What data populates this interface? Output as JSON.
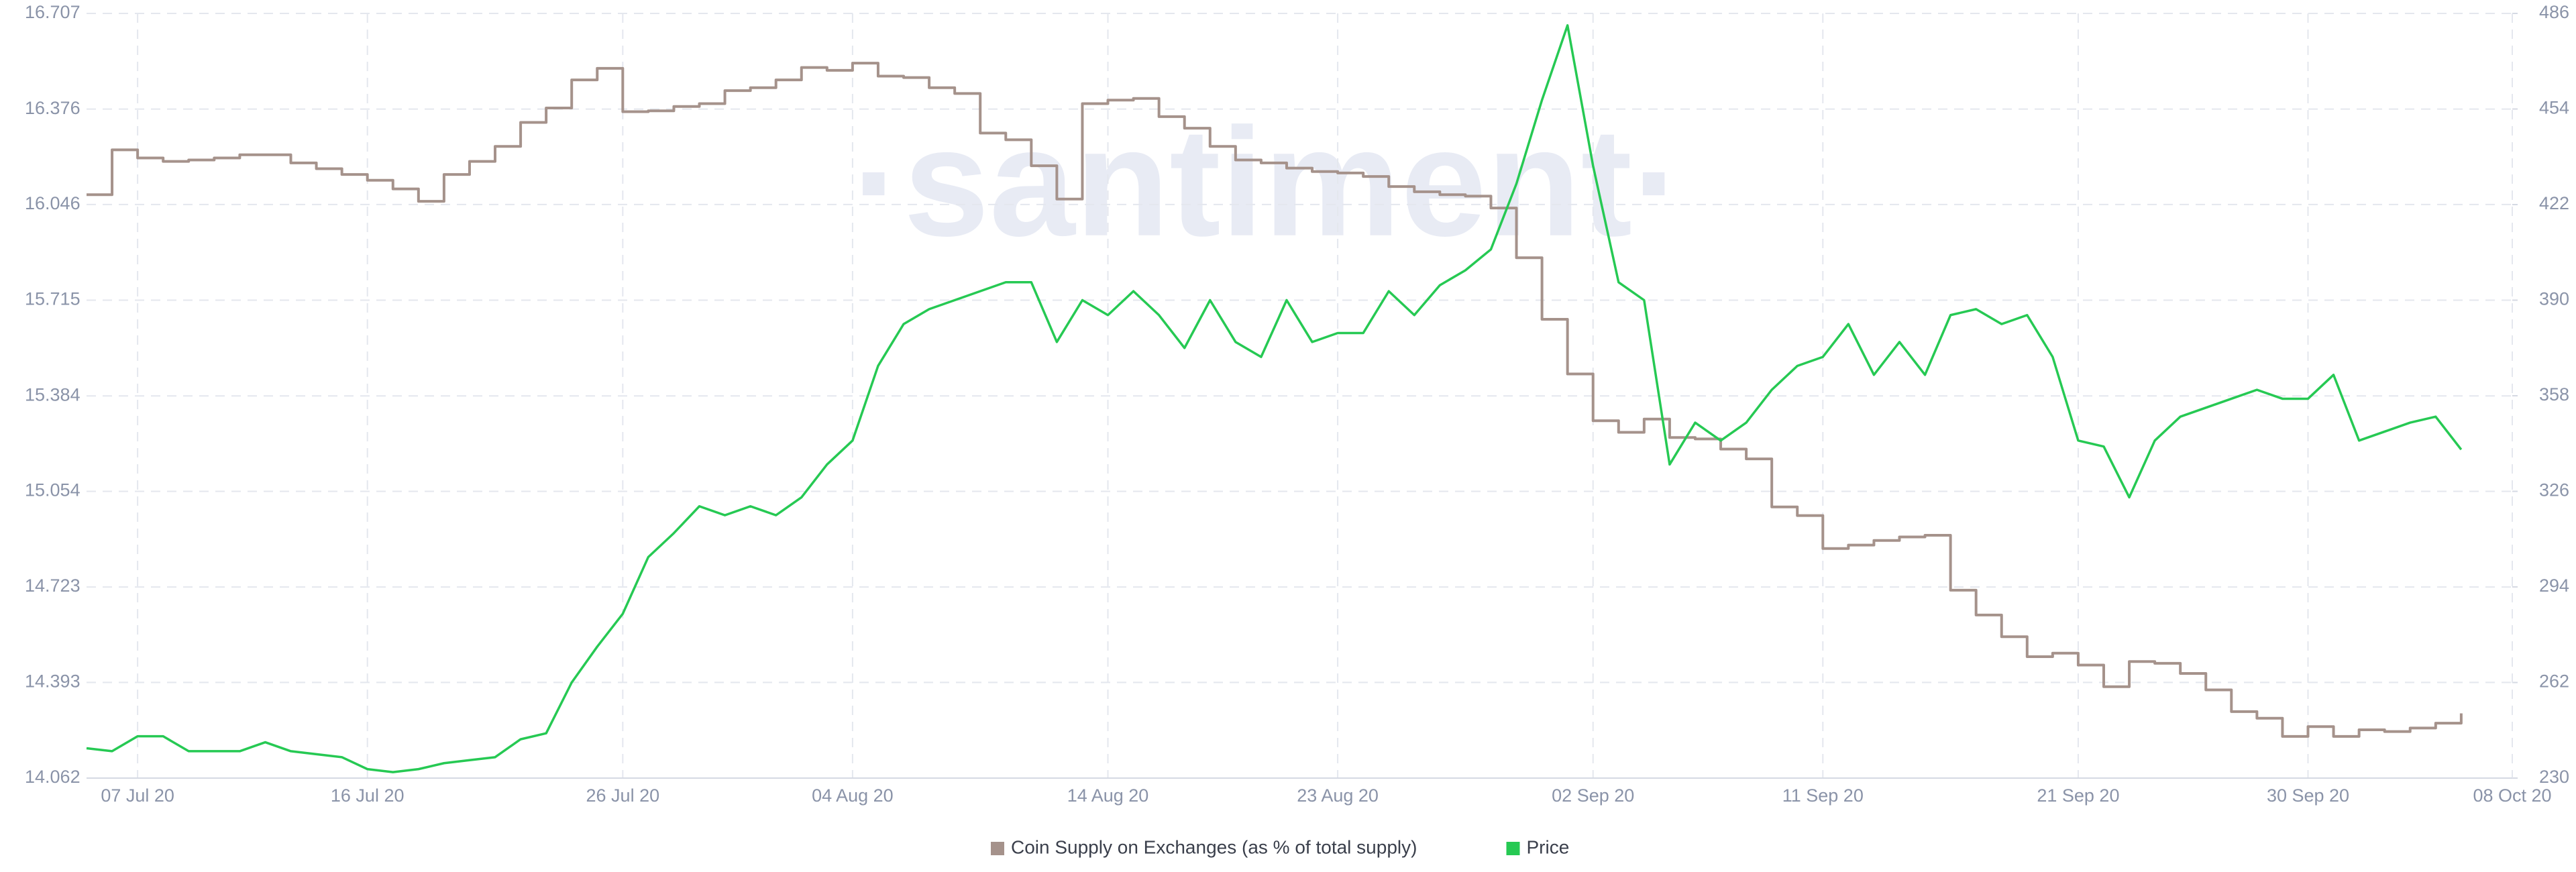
{
  "chart_data": {
    "type": "line",
    "watermark": "·santiment·",
    "x": [
      "2020-07-05",
      "2020-07-06",
      "2020-07-07",
      "2020-07-08",
      "2020-07-09",
      "2020-07-10",
      "2020-07-11",
      "2020-07-12",
      "2020-07-13",
      "2020-07-14",
      "2020-07-15",
      "2020-07-16",
      "2020-07-17",
      "2020-07-18",
      "2020-07-19",
      "2020-07-20",
      "2020-07-21",
      "2020-07-22",
      "2020-07-23",
      "2020-07-24",
      "2020-07-25",
      "2020-07-26",
      "2020-07-27",
      "2020-07-28",
      "2020-07-29",
      "2020-07-30",
      "2020-07-31",
      "2020-08-01",
      "2020-08-02",
      "2020-08-03",
      "2020-08-04",
      "2020-08-05",
      "2020-08-06",
      "2020-08-07",
      "2020-08-08",
      "2020-08-09",
      "2020-08-10",
      "2020-08-11",
      "2020-08-12",
      "2020-08-13",
      "2020-08-14",
      "2020-08-15",
      "2020-08-16",
      "2020-08-17",
      "2020-08-18",
      "2020-08-19",
      "2020-08-20",
      "2020-08-21",
      "2020-08-22",
      "2020-08-23",
      "2020-08-24",
      "2020-08-25",
      "2020-08-26",
      "2020-08-27",
      "2020-08-28",
      "2020-08-29",
      "2020-08-30",
      "2020-08-31",
      "2020-09-01",
      "2020-09-02",
      "2020-09-03",
      "2020-09-04",
      "2020-09-05",
      "2020-09-06",
      "2020-09-07",
      "2020-09-08",
      "2020-09-09",
      "2020-09-10",
      "2020-09-11",
      "2020-09-12",
      "2020-09-13",
      "2020-09-14",
      "2020-09-15",
      "2020-09-16",
      "2020-09-17",
      "2020-09-18",
      "2020-09-19",
      "2020-09-20",
      "2020-09-21",
      "2020-09-22",
      "2020-09-23",
      "2020-09-24",
      "2020-09-25",
      "2020-09-26",
      "2020-09-27",
      "2020-09-28",
      "2020-09-29",
      "2020-09-30",
      "2020-10-01",
      "2020-10-02",
      "2020-10-03",
      "2020-10-04",
      "2020-10-05",
      "2020-10-06"
    ],
    "series": [
      {
        "name": "Coin Supply on Exchanges (as % of total supply)",
        "color": "#a5928b",
        "axis": "y",
        "step": true,
        "values": [
          16.08,
          16.235,
          16.207,
          16.195,
          16.2,
          16.207,
          16.218,
          16.218,
          16.19,
          16.17,
          16.15,
          16.13,
          16.1,
          16.057,
          16.15,
          16.195,
          16.247,
          16.33,
          16.38,
          16.477,
          16.517,
          16.367,
          16.37,
          16.385,
          16.395,
          16.44,
          16.45,
          16.477,
          16.52,
          16.51,
          16.535,
          16.49,
          16.485,
          16.45,
          16.43,
          16.293,
          16.27,
          16.18,
          16.065,
          16.395,
          16.407,
          16.413,
          16.35,
          16.31,
          16.247,
          16.2,
          16.19,
          16.172,
          16.16,
          16.155,
          16.143,
          16.108,
          16.09,
          16.08,
          16.075,
          16.034,
          15.862,
          15.649,
          15.46,
          15.298,
          15.258,
          15.304,
          15.24,
          15.235,
          15.2,
          15.166,
          15.0,
          14.97,
          14.856,
          14.868,
          14.884,
          14.896,
          14.902,
          14.712,
          14.626,
          14.551,
          14.482,
          14.494,
          14.453,
          14.378,
          14.465,
          14.459,
          14.424,
          14.367,
          14.292,
          14.269,
          14.206,
          14.24,
          14.206,
          14.229,
          14.223,
          14.235,
          14.252,
          14.286
        ]
      },
      {
        "name": "Price",
        "color": "#26c953",
        "axis": "y2",
        "step": false,
        "values": [
          240,
          239,
          244,
          244,
          239,
          239,
          239,
          242,
          239,
          238,
          237,
          233,
          232,
          233,
          235,
          236,
          237,
          243,
          245,
          262,
          274,
          285,
          304,
          312,
          321,
          318,
          321,
          318,
          324,
          335,
          343,
          368,
          382,
          387,
          390,
          393,
          396,
          396,
          376,
          390,
          385,
          393,
          385,
          374,
          390,
          376,
          371,
          390,
          376,
          379,
          379,
          393,
          385,
          395,
          400,
          407,
          429,
          457,
          482,
          435,
          396,
          390,
          335,
          349,
          343,
          349,
          360,
          368,
          371,
          382,
          365,
          376,
          365,
          385,
          387,
          382,
          385,
          371,
          343,
          341,
          324,
          343,
          351,
          354,
          357,
          360,
          357,
          357,
          365,
          343,
          346,
          349,
          351,
          340
        ]
      }
    ],
    "xlim": [
      "2020-07-05",
      "2020-10-08"
    ],
    "xticks": [
      {
        "value": "2020-07-07",
        "label": "07 Jul 20"
      },
      {
        "value": "2020-07-16",
        "label": "16 Jul 20"
      },
      {
        "value": "2020-07-26",
        "label": "26 Jul 20"
      },
      {
        "value": "2020-08-04",
        "label": "04 Aug 20"
      },
      {
        "value": "2020-08-14",
        "label": "14 Aug 20"
      },
      {
        "value": "2020-08-23",
        "label": "23 Aug 20"
      },
      {
        "value": "2020-09-02",
        "label": "02 Sep 20"
      },
      {
        "value": "2020-09-11",
        "label": "11 Sep 20"
      },
      {
        "value": "2020-09-21",
        "label": "21 Sep 20"
      },
      {
        "value": "2020-09-30",
        "label": "30 Sep 20"
      },
      {
        "value": "2020-10-08",
        "label": "08 Oct 20"
      }
    ],
    "ylim": [
      14.062,
      16.707
    ],
    "yticks": [
      14.062,
      14.393,
      14.723,
      15.054,
      15.384,
      15.715,
      16.046,
      16.376,
      16.707
    ],
    "y2lim": [
      230,
      486
    ],
    "y2ticks": [
      230,
      262,
      294,
      326,
      358,
      390,
      422,
      454,
      486
    ],
    "grid": true,
    "legend": "bottom"
  }
}
